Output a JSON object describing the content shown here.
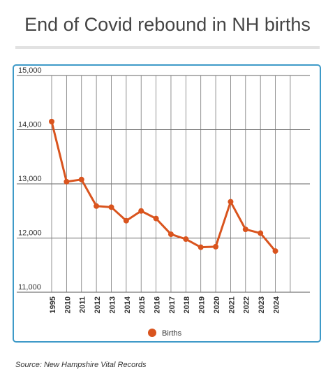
{
  "header": {
    "title": "End of Covid rebound in NH births"
  },
  "footer": {
    "source": "Source: New Hampshire Vital Records"
  },
  "chart_data": {
    "type": "line",
    "title": "End of Covid rebound in NH births",
    "xlabel": "",
    "ylabel": "",
    "x": [
      1995,
      2010,
      2011,
      2012,
      2013,
      2014,
      2015,
      2016,
      2017,
      2018,
      2019,
      2020,
      2021,
      2022,
      2023,
      2024
    ],
    "x_tick_labels": [
      "1995",
      "2010",
      "2011",
      "2012",
      "2013",
      "2014",
      "2015",
      "2016",
      "2017",
      "2018",
      "2019",
      "2020",
      "2021",
      "2022",
      "2023",
      "2024"
    ],
    "series": [
      {
        "name": "Births",
        "color": "#d9541e",
        "values": [
          14150,
          13040,
          13080,
          12590,
          12570,
          12320,
          12500,
          12360,
          12070,
          11980,
          11830,
          11840,
          12670,
          12160,
          12090,
          11760
        ]
      }
    ],
    "ylim": [
      11000,
      15000
    ],
    "y_ticks": [
      11000,
      12000,
      13000,
      14000,
      15000
    ],
    "y_tick_labels": [
      "11,000",
      "12,000",
      "13,000",
      "14,000",
      "15,000"
    ],
    "grid": true,
    "legend_position": "bottom"
  }
}
